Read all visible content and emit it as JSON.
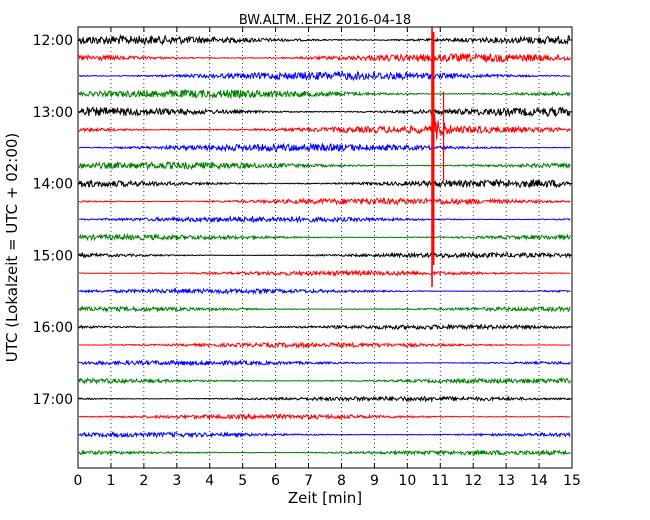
{
  "chart_data": {
    "type": "line",
    "title": "BW.ALTM..EHZ 2016-04-18",
    "xlabel": "Zeit  [min]",
    "ylabel": "UTC (Lokalzeit = UTC + 02:00)",
    "xlim": [
      0,
      15
    ],
    "x_ticks": [
      "0",
      "1",
      "2",
      "3",
      "4",
      "5",
      "6",
      "7",
      "8",
      "9",
      "10",
      "11",
      "12",
      "13",
      "14",
      "15"
    ],
    "y_ticks": [
      {
        "label": "12:00",
        "row": 0
      },
      {
        "label": "13:00",
        "row": 4
      },
      {
        "label": "14:00",
        "row": 8
      },
      {
        "label": "15:00",
        "row": 12
      },
      {
        "label": "16:00",
        "row": 16
      },
      {
        "label": "17:00",
        "row": 20
      }
    ],
    "grid": "vertical-dotted",
    "trace_colors": [
      "#000000",
      "#ff0000",
      "#0000ff",
      "#008000"
    ],
    "traces": [
      {
        "start": "12:00",
        "noise": 1.0
      },
      {
        "start": "12:15",
        "noise": 0.9
      },
      {
        "start": "12:30",
        "noise": 0.9
      },
      {
        "start": "12:45",
        "noise": 0.9
      },
      {
        "start": "13:00",
        "noise": 1.0
      },
      {
        "start": "13:15",
        "noise": 0.8
      },
      {
        "start": "13:30",
        "noise": 0.8
      },
      {
        "start": "13:45",
        "noise": 0.7
      },
      {
        "start": "14:00",
        "noise": 0.8
      },
      {
        "start": "14:15",
        "noise": 0.6
      },
      {
        "start": "14:30",
        "noise": 0.45
      },
      {
        "start": "14:45",
        "noise": 0.4
      },
      {
        "start": "15:00",
        "noise": 0.35
      },
      {
        "start": "15:15",
        "noise": 0.3
      },
      {
        "start": "15:30",
        "noise": 0.3
      },
      {
        "start": "15:45",
        "noise": 0.3
      },
      {
        "start": "16:00",
        "noise": 0.3
      },
      {
        "start": "16:15",
        "noise": 0.3
      },
      {
        "start": "16:30",
        "noise": 0.3
      },
      {
        "start": "16:45",
        "noise": 0.35
      },
      {
        "start": "17:00",
        "noise": 0.3
      },
      {
        "start": "17:15",
        "noise": 0.3
      },
      {
        "start": "17:30",
        "noise": 0.3
      },
      {
        "start": "17:45",
        "noise": 0.3
      }
    ],
    "event": {
      "trace_start": "13:15",
      "onset_min": 10.75,
      "end_min": 11.75
    }
  }
}
